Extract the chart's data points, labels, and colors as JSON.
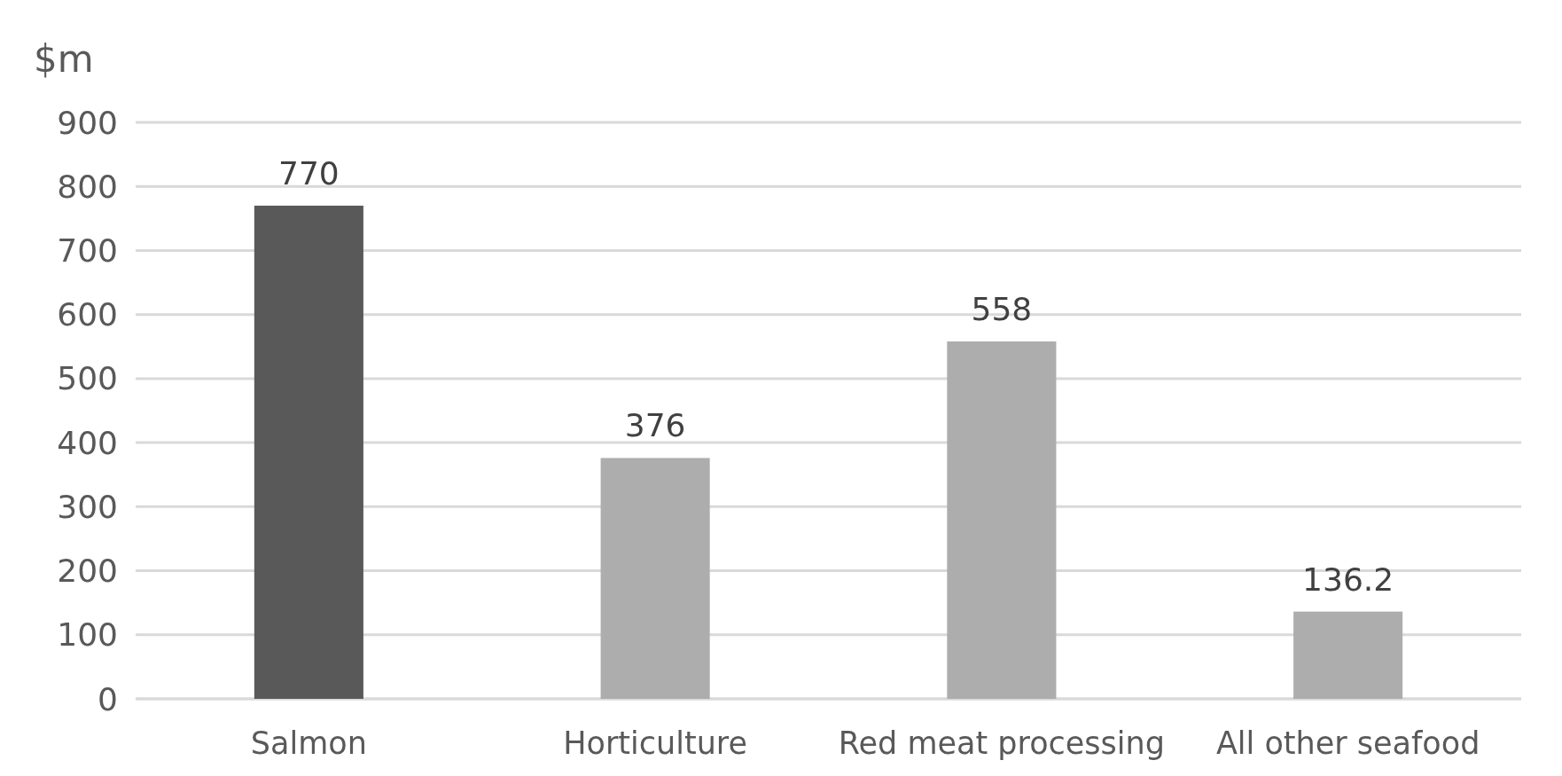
{
  "chart_data": {
    "type": "bar",
    "ylabel": "$m",
    "categories": [
      "Salmon",
      "Horticulture",
      "Red meat processing",
      "All other seafood"
    ],
    "values": [
      770,
      376,
      558,
      136.2
    ],
    "colors": [
      "#595959",
      "#adadad",
      "#adadad",
      "#adadad"
    ],
    "ylim": [
      0,
      900
    ],
    "yticks": [
      0,
      100,
      200,
      300,
      400,
      500,
      600,
      700,
      800,
      900
    ],
    "grid": "y",
    "data_labels": true
  }
}
